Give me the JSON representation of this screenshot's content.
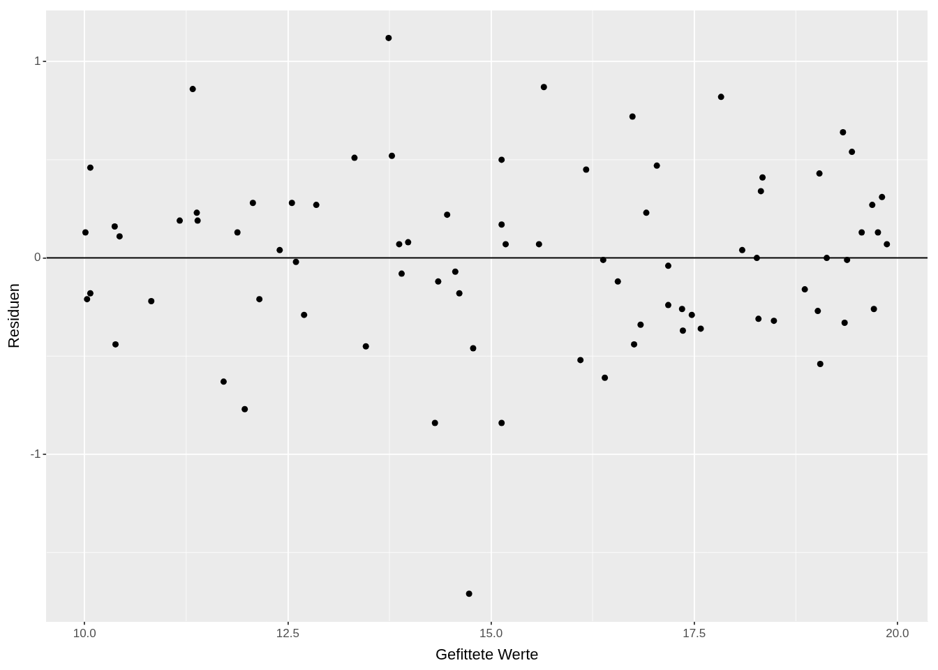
{
  "chart_data": {
    "type": "scatter",
    "x_label": "Gefittete Werte",
    "y_label": "Residuen",
    "x": [
      10.01,
      10.03,
      10.07,
      10.07,
      10.37,
      10.38,
      10.43,
      10.82,
      11.17,
      11.33,
      11.38,
      11.39,
      11.71,
      11.88,
      11.97,
      12.07,
      12.15,
      12.4,
      12.55,
      12.6,
      12.7,
      12.85,
      13.32,
      13.46,
      13.74,
      13.78,
      13.87,
      13.9,
      13.98,
      14.31,
      14.35,
      14.46,
      14.56,
      14.61,
      14.73,
      14.78,
      15.13,
      15.13,
      15.13,
      15.18,
      15.59,
      15.65,
      16.1,
      16.17,
      16.38,
      16.4,
      16.56,
      16.74,
      16.76,
      16.84,
      16.91,
      17.04,
      17.18,
      17.18,
      17.35,
      17.36,
      17.47,
      17.58,
      17.83,
      18.09,
      18.27,
      18.29,
      18.32,
      18.34,
      18.48,
      18.86,
      19.02,
      19.04,
      19.05,
      19.13,
      19.33,
      19.35,
      19.38,
      19.44,
      19.56,
      19.69,
      19.71,
      19.76,
      19.81,
      19.87
    ],
    "values": [
      0.13,
      -0.21,
      0.46,
      -0.18,
      0.16,
      -0.44,
      0.11,
      -0.22,
      0.19,
      0.86,
      0.23,
      0.19,
      -0.63,
      0.13,
      -0.77,
      0.28,
      -0.21,
      0.04,
      0.28,
      -0.02,
      -0.29,
      0.27,
      0.51,
      -0.45,
      1.12,
      0.52,
      0.07,
      -0.08,
      0.08,
      -0.84,
      -0.12,
      0.22,
      -0.07,
      -0.18,
      -1.71,
      -0.46,
      0.5,
      0.17,
      -0.84,
      0.07,
      0.07,
      0.87,
      -0.52,
      0.45,
      -0.01,
      -0.61,
      -0.12,
      0.72,
      -0.44,
      -0.34,
      0.23,
      0.47,
      -0.04,
      -0.24,
      -0.26,
      -0.37,
      -0.29,
      -0.36,
      0.82,
      0.04,
      0.0,
      -0.31,
      0.34,
      0.41,
      -0.32,
      -0.16,
      -0.27,
      0.43,
      -0.54,
      0.0,
      0.64,
      -0.33,
      -0.01,
      0.54,
      0.13,
      0.27,
      -0.26,
      0.13,
      0.31,
      0.07
    ],
    "color": "#000000",
    "hline": 0,
    "xlim": [
      9.53,
      20.37
    ],
    "ylim": [
      -1.85,
      1.26
    ],
    "xticks": [
      {
        "value": 10,
        "label": "10.0"
      },
      12.5,
      {
        "value": 15,
        "label": "15.0"
      },
      17.5,
      {
        "value": 20,
        "label": "20.0"
      }
    ],
    "yticks": [
      -1,
      0,
      1
    ],
    "grid": true
  }
}
